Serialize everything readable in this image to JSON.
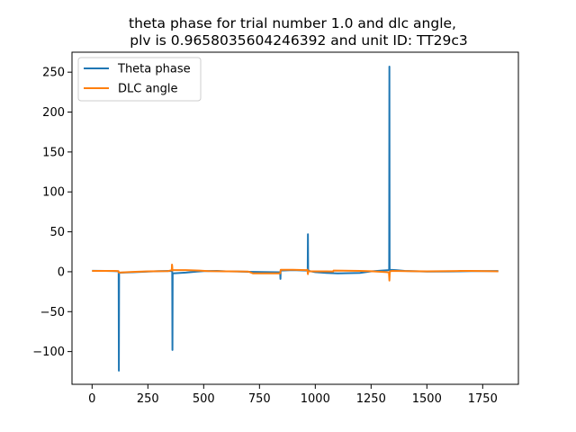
{
  "chart_data": {
    "type": "line",
    "title_line1": "theta phase for trial number 1.0 and dlc angle,",
    "title_line2": "plv is 0.9658035604246392 and unit ID: TT29c3",
    "xlabel": "",
    "ylabel": "",
    "xlim": [
      -90,
      1910
    ],
    "ylim": [
      -141,
      275
    ],
    "x_ticks": [
      0,
      250,
      500,
      750,
      1000,
      1250,
      1500,
      1750
    ],
    "y_ticks": [
      -100,
      -50,
      0,
      50,
      100,
      150,
      200,
      250
    ],
    "grid": false,
    "legend_position": "upper left",
    "series": [
      {
        "name": "Theta phase",
        "color": "#1f77b4",
        "points": [
          [
            0,
            1.2
          ],
          [
            60,
            1.0
          ],
          [
            118,
            0.6
          ],
          [
            119,
            -1.0
          ],
          [
            120,
            -124.0
          ],
          [
            121,
            -2.0
          ],
          [
            122,
            -1.2
          ],
          [
            180,
            -0.6
          ],
          [
            250,
            0.2
          ],
          [
            300,
            0.8
          ],
          [
            358,
            1.0
          ],
          [
            359,
            0.5
          ],
          [
            360,
            -98.0
          ],
          [
            361,
            -3.5
          ],
          [
            362,
            -2.0
          ],
          [
            420,
            -1.0
          ],
          [
            470,
            0.2
          ],
          [
            500,
            0.8
          ],
          [
            560,
            1.1
          ],
          [
            600,
            0.5
          ],
          [
            650,
            0.3
          ],
          [
            700,
            -0.1
          ],
          [
            760,
            -0.4
          ],
          [
            840,
            -0.6
          ],
          [
            843,
            -3.0
          ],
          [
            844,
            -9.0
          ],
          [
            845,
            1.5
          ],
          [
            900,
            2.0
          ],
          [
            960,
            1.5
          ],
          [
            966,
            2.0
          ],
          [
            967,
            47.0
          ],
          [
            968,
            3.5
          ],
          [
            970,
            1.0
          ],
          [
            1000,
            -0.5
          ],
          [
            1050,
            -1.5
          ],
          [
            1100,
            -2.0
          ],
          [
            1200,
            -1.5
          ],
          [
            1250,
            0.5
          ],
          [
            1300,
            1.5
          ],
          [
            1330,
            2.0
          ],
          [
            1331,
            4.0
          ],
          [
            1332,
            257.0
          ],
          [
            1333,
            2.5
          ],
          [
            1360,
            2.0
          ],
          [
            1400,
            1.0
          ],
          [
            1500,
            0.2
          ],
          [
            1600,
            0.3
          ],
          [
            1700,
            0.8
          ],
          [
            1820,
            0.9
          ]
        ]
      },
      {
        "name": "DLC angle",
        "color": "#ff7f0e",
        "points": [
          [
            0,
            1.0
          ],
          [
            100,
            1.0
          ],
          [
            118,
            0.8
          ],
          [
            120,
            -1.0
          ],
          [
            180,
            -0.2
          ],
          [
            250,
            0.5
          ],
          [
            340,
            0.8
          ],
          [
            357,
            2.0
          ],
          [
            358,
            9.0
          ],
          [
            359,
            7.0
          ],
          [
            360,
            1.5
          ],
          [
            362,
            2.0
          ],
          [
            420,
            2.0
          ],
          [
            480,
            1.5
          ],
          [
            520,
            0.8
          ],
          [
            600,
            0.5
          ],
          [
            700,
            0.2
          ],
          [
            720,
            -2.0
          ],
          [
            800,
            -2.0
          ],
          [
            843,
            -2.0
          ],
          [
            845,
            2.5
          ],
          [
            900,
            2.5
          ],
          [
            960,
            2.0
          ],
          [
            965,
            2.5
          ],
          [
            966,
            -1.0
          ],
          [
            967,
            -3.0
          ],
          [
            968,
            0.5
          ],
          [
            1000,
            0.5
          ],
          [
            1050,
            0.5
          ],
          [
            1080,
            0.3
          ],
          [
            1082,
            1.5
          ],
          [
            1200,
            1.0
          ],
          [
            1250,
            0.6
          ],
          [
            1320,
            -0.5
          ],
          [
            1330,
            -1.0
          ],
          [
            1332,
            -11.0
          ],
          [
            1334,
            0.5
          ],
          [
            1345,
            1.0
          ],
          [
            1400,
            0.8
          ],
          [
            1500,
            0.5
          ],
          [
            1650,
            1.0
          ],
          [
            1700,
            1.0
          ],
          [
            1820,
            0.5
          ]
        ]
      }
    ]
  }
}
